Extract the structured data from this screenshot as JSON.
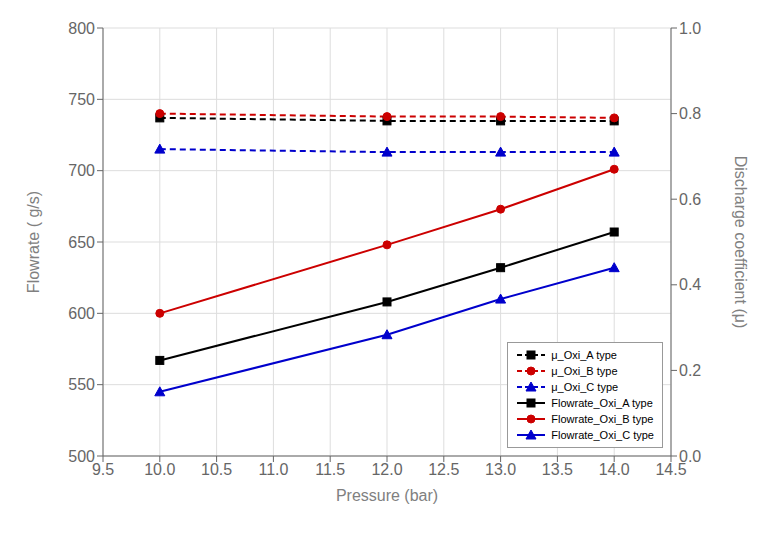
{
  "chart_data": {
    "type": "line",
    "x": [
      10,
      12,
      13,
      14
    ],
    "xlabel": "Pressure (bar)",
    "ylabel": "Flowrate ( g/s)",
    "y2label": "Discharge coefficient (μ)",
    "xlim": [
      9.5,
      14.5
    ],
    "xticks": [
      9.5,
      {
        "value": 10.0,
        "label": "10.0"
      },
      10.5,
      {
        "value": 11.0,
        "label": "11.0"
      },
      11.5,
      {
        "value": 12.0,
        "label": "12.0"
      },
      12.5,
      {
        "value": 13.0,
        "label": "13.0"
      },
      13.5,
      {
        "value": 14.0,
        "label": "14.0"
      },
      14.5
    ],
    "ylim": [
      500,
      800
    ],
    "yticks": [
      500,
      550,
      600,
      650,
      700,
      750,
      800
    ],
    "y2lim": [
      0.0,
      1.0
    ],
    "y2ticks": [
      {
        "value": 0.0,
        "label": "0.0"
      },
      0.2,
      0.4,
      0.6,
      0.8,
      {
        "value": 1.0,
        "label": "1.0"
      }
    ],
    "grid": true,
    "legend": "lower right",
    "series": [
      {
        "name": "Flowrate_Oxi_A type",
        "color": "#000000",
        "marker": "square",
        "line_style": "solid",
        "values": [
          567,
          608,
          632,
          657
        ]
      },
      {
        "name": "Flowrate_Oxi_B type",
        "color": "#cc0000",
        "marker": "circle",
        "line_style": "solid",
        "values": [
          600,
          648,
          673,
          701
        ]
      },
      {
        "name": "Flowrate_Oxi_C type",
        "color": "#0000cc",
        "marker": "triangle",
        "line_style": "solid",
        "values": [
          545,
          585,
          610,
          632
        ]
      },
      {
        "name": "μ_Oxi_A type",
        "color": "#000000",
        "marker": "square",
        "line_style": "dashed",
        "axis": "y2",
        "values": [
          0.79,
          0.783,
          0.783,
          0.783
        ]
      },
      {
        "name": "μ_Oxi_B type",
        "color": "#cc0000",
        "marker": "circle",
        "line_style": "dashed",
        "axis": "y2",
        "values": [
          0.8,
          0.793,
          0.793,
          0.79
        ]
      },
      {
        "name": "μ_Oxi_C type",
        "color": "#0000cc",
        "marker": "triangle",
        "line_style": "dashed",
        "axis": "y2",
        "values": [
          0.717,
          0.71,
          0.71,
          0.71
        ]
      }
    ]
  }
}
